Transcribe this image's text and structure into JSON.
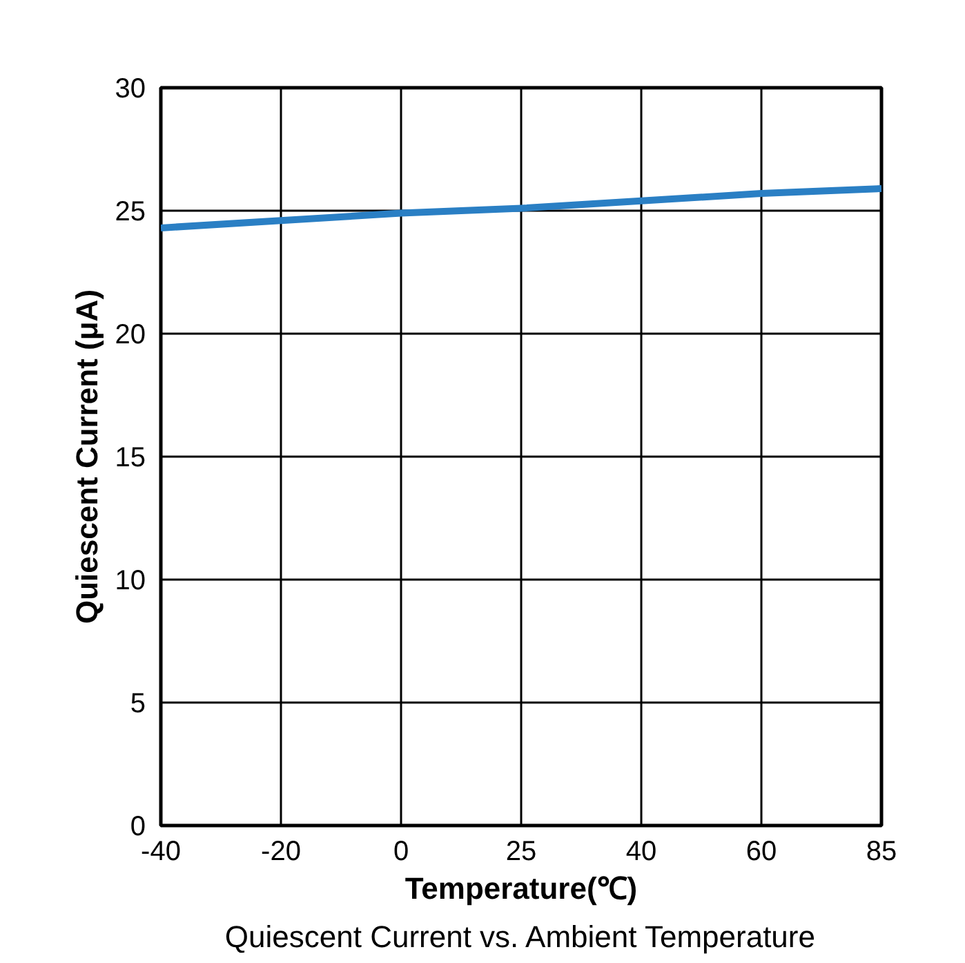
{
  "chart_data": {
    "type": "line",
    "title": "Quiescent Current vs. Ambient Temperature",
    "xlabel": "Temperature(℃)",
    "ylabel": "Quiescent Current (μA)",
    "categories": [
      "-40",
      "-20",
      "0",
      "25",
      "40",
      "60",
      "85"
    ],
    "series": [
      {
        "color": "#2a7fc4",
        "values": [
          24.3,
          24.6,
          24.9,
          25.1,
          25.4,
          25.7,
          25.9
        ]
      }
    ],
    "ylim": [
      0,
      30
    ],
    "yticks": [
      0,
      5,
      10,
      15,
      20,
      25,
      30
    ],
    "grid": true,
    "line_style": "solid"
  }
}
